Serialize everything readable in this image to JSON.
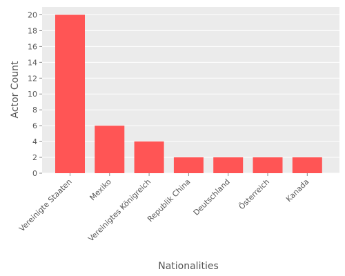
{
  "chart_data": {
    "type": "bar",
    "title": "",
    "xlabel": "Nationalities",
    "ylabel": "Actor Count",
    "categories": [
      "Vereinigte Staaten",
      "Mexiko",
      "Vereinigtes Königreich",
      "Republik China",
      "Deutschland",
      "Österreich",
      "Kanada"
    ],
    "values": [
      20,
      6,
      4,
      2,
      2,
      2,
      2
    ],
    "ylim": [
      0,
      21
    ],
    "yticks": [
      0,
      2,
      4,
      6,
      8,
      10,
      12,
      14,
      16,
      18,
      20
    ],
    "grid": true,
    "colors": {
      "bar": "#FF5555",
      "panel": "#EBEBEB",
      "grid": "#FFFFFF",
      "text": "#555555"
    }
  }
}
